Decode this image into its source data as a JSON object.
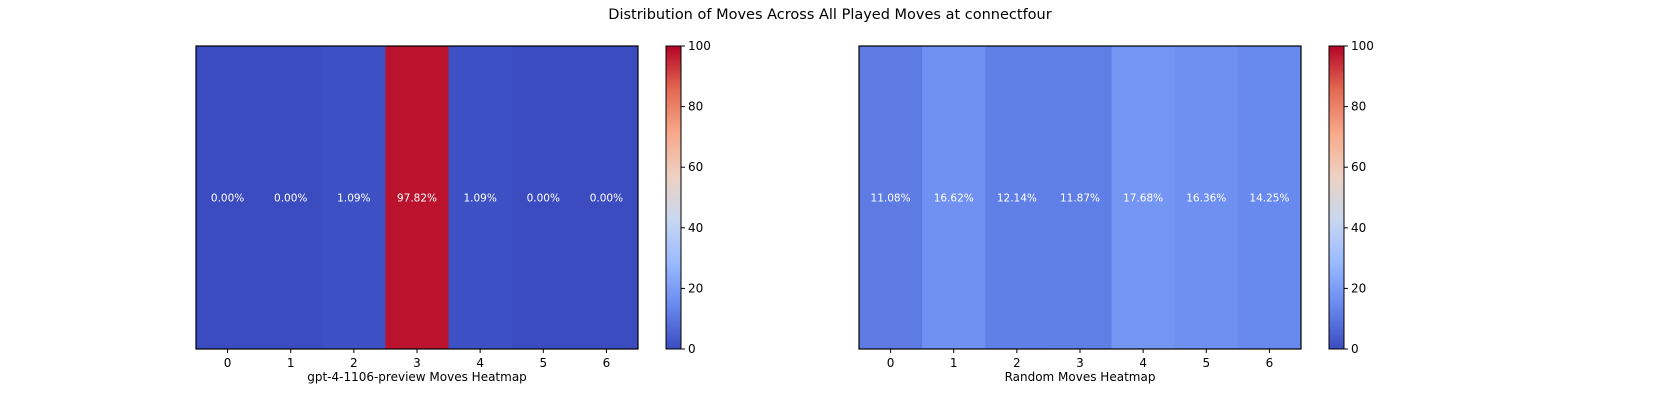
{
  "title": "Distribution of Moves Across All Played Moves at connectfour",
  "colormap": {
    "name": "coolwarm",
    "stops": [
      "#3b4cc0",
      "#6889ee",
      "#9abbff",
      "#c9d7f0",
      "#edd1c2",
      "#f7a889",
      "#e26952",
      "#b40426"
    ],
    "range": [
      0,
      100
    ],
    "ticks": [
      "0",
      "20",
      "40",
      "60",
      "80",
      "100"
    ]
  },
  "chart_data": [
    {
      "type": "heatmap",
      "xlabel": "gpt-4-1106-preview Moves Heatmap",
      "categories": [
        "0",
        "1",
        "2",
        "3",
        "4",
        "5",
        "6"
      ],
      "values": [
        0.0,
        0.0,
        1.09,
        97.82,
        1.09,
        0.0,
        0.0
      ],
      "labels": [
        "0.00%",
        "0.00%",
        "1.09%",
        "97.82%",
        "1.09%",
        "0.00%",
        "0.00%"
      ],
      "colorbar_range": [
        0,
        100
      ],
      "colorbar_ticks": [
        "0",
        "20",
        "40",
        "60",
        "80",
        "100"
      ]
    },
    {
      "type": "heatmap",
      "xlabel": "Random Moves Heatmap",
      "categories": [
        "0",
        "1",
        "2",
        "3",
        "4",
        "5",
        "6"
      ],
      "values": [
        11.08,
        16.62,
        12.14,
        11.87,
        17.68,
        16.36,
        14.25
      ],
      "labels": [
        "11.08%",
        "16.62%",
        "12.14%",
        "11.87%",
        "17.68%",
        "16.36%",
        "14.25%"
      ],
      "colorbar_range": [
        0,
        100
      ],
      "colorbar_ticks": [
        "0",
        "20",
        "40",
        "60",
        "80",
        "100"
      ]
    }
  ]
}
